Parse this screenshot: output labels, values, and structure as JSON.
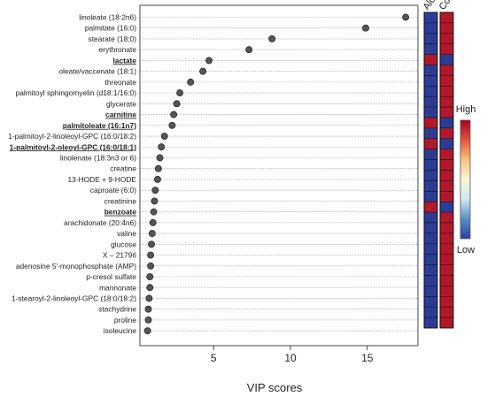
{
  "chart_data": {
    "type": "scatter",
    "xlabel": "VIP scores",
    "xlim": [
      0.2,
      18.3
    ],
    "xticks": [
      5,
      10,
      15
    ],
    "metabolites": [
      {
        "label": "linoleate (18:2n6)",
        "vip": 17.5,
        "bold": false
      },
      {
        "label": "palmitate (16:0)",
        "vip": 14.9,
        "bold": false
      },
      {
        "label": "stearate (18:0)",
        "vip": 8.8,
        "bold": false
      },
      {
        "label": "erythronate",
        "vip": 7.3,
        "bold": false
      },
      {
        "label": "lactate",
        "vip": 4.7,
        "bold": true
      },
      {
        "label": "oleate/vaccenate (18:1)",
        "vip": 4.3,
        "bold": false
      },
      {
        "label": "threonate",
        "vip": 3.5,
        "bold": false
      },
      {
        "label": "palmitoyl sphingomyelin (d18:1/16:0)",
        "vip": 2.8,
        "bold": false
      },
      {
        "label": "glycerate",
        "vip": 2.6,
        "bold": false
      },
      {
        "label": "carnitine",
        "vip": 2.4,
        "bold": true
      },
      {
        "label": "palmitoleate (16:1n7)",
        "vip": 2.3,
        "bold": true
      },
      {
        "label": "1-palmitoyl-2-linoleoyl-GPC (16:0/18:2)",
        "vip": 1.8,
        "bold": false
      },
      {
        "label": "1-palmitoyl-2-oleoyl-GPC (16:0/18:1)",
        "vip": 1.6,
        "bold": true
      },
      {
        "label": "linolenate (18:3n3 or 6)",
        "vip": 1.5,
        "bold": false
      },
      {
        "label": "creatine",
        "vip": 1.4,
        "bold": false
      },
      {
        "label": "13-HODE + 9-HODE",
        "vip": 1.35,
        "bold": false
      },
      {
        "label": "caproate (6:0)",
        "vip": 1.2,
        "bold": false
      },
      {
        "label": "creatinine",
        "vip": 1.15,
        "bold": false
      },
      {
        "label": "benzoate",
        "vip": 1.1,
        "bold": true
      },
      {
        "label": "arachidonate (20:4n6)",
        "vip": 1.05,
        "bold": false
      },
      {
        "label": "valine",
        "vip": 1.0,
        "bold": false
      },
      {
        "label": "glucose",
        "vip": 0.95,
        "bold": false
      },
      {
        "label": "X – 21796",
        "vip": 0.9,
        "bold": false
      },
      {
        "label": "adenosine 5'-monophosphate (AMP)",
        "vip": 0.9,
        "bold": false
      },
      {
        "label": "p-cresol sulfate",
        "vip": 0.85,
        "bold": false
      },
      {
        "label": "mannonate",
        "vip": 0.85,
        "bold": false
      },
      {
        "label": "1-stearoyl-2-linoleoyl-GPC (18:0/18:2)",
        "vip": 0.8,
        "bold": false
      },
      {
        "label": "stachydrine",
        "vip": 0.75,
        "bold": false
      },
      {
        "label": "proline",
        "vip": 0.75,
        "bold": false
      },
      {
        "label": "isoleucine",
        "vip": 0.7,
        "bold": false
      }
    ],
    "heatmap": {
      "columns": [
        "Alc",
        "Con"
      ],
      "alc": [
        "low",
        "low",
        "low",
        "low",
        "high",
        "low",
        "low",
        "low",
        "low",
        "low",
        "high",
        "low",
        "high",
        "low",
        "low",
        "low",
        "low",
        "low",
        "high",
        "low",
        "low",
        "low",
        "low",
        "low",
        "low",
        "low",
        "low",
        "low",
        "low",
        "low"
      ],
      "con": [
        "high",
        "high",
        "high",
        "high",
        "low",
        "high",
        "high",
        "high",
        "high",
        "high",
        "low",
        "high",
        "low",
        "high",
        "high",
        "high",
        "high",
        "high",
        "low",
        "high",
        "high",
        "high",
        "high",
        "high",
        "high",
        "high",
        "high",
        "high",
        "high",
        "high"
      ]
    },
    "legend": {
      "high_label": "High",
      "low_label": "Low",
      "gradient": [
        "#2b3f99",
        "#5a8fc8",
        "#cfe8f3",
        "#fbf7d6",
        "#f7c37b",
        "#e2553a",
        "#a50026"
      ]
    },
    "colors": {
      "point": "#555555",
      "high": "#b2182b",
      "low": "#2c3c94",
      "grid": "#999999"
    }
  }
}
